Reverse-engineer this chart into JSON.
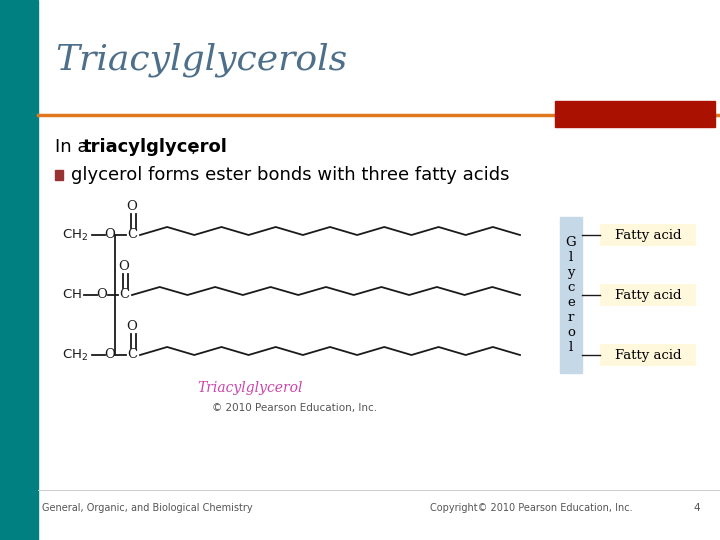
{
  "title": "Triacylglycerols",
  "title_color": "#4d6f8a",
  "title_fontsize": 26,
  "left_bar_color": "#008080",
  "orange_line_color": "#E07820",
  "red_box_color": "#AA1100",
  "text1_normal": "In a ",
  "text1_bold": "triacylglycerol",
  "text1_suffix": ",",
  "bullet_color": "#993333",
  "bullet_text": "glycerol forms ester bonds with three fatty acids",
  "glycerol_label": "G\nl\ny\nc\ne\nr\no\nl",
  "glycerol_box_color": "#C5D8E8",
  "fatty_acid_box_color": "#FFF8DC",
  "fatty_acid_label": "Fatty acid",
  "triacylglycerol_label": "Triacylglycerol",
  "triacylglycerol_label_color": "#CC44AA",
  "copyright_text": "© 2010 Pearson Education, Inc.",
  "footer_left": "General, Organic, and Biological Chemistry",
  "footer_right": "Copyright© 2010 Pearson Education, Inc.",
  "footer_page": "4",
  "bg_color": "#FFFFFF",
  "footer_color": "#555555",
  "struct_color": "#1a1a1a"
}
